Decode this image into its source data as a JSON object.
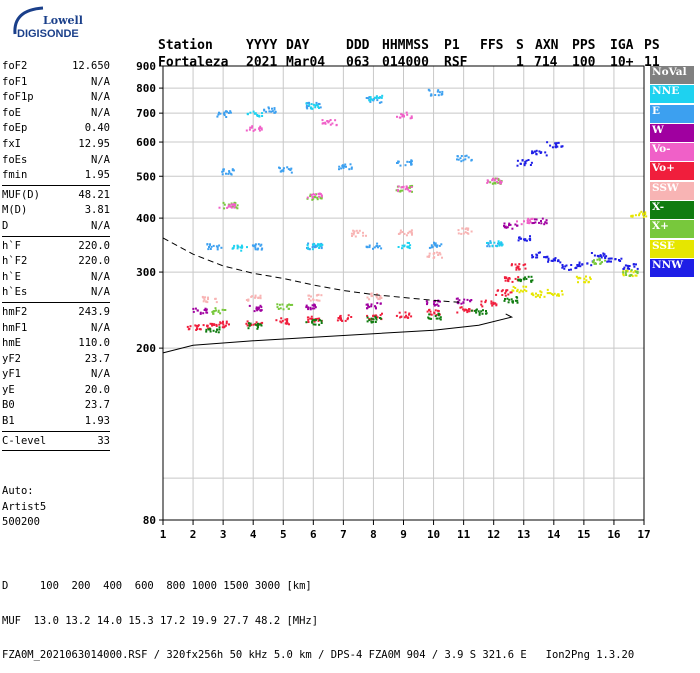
{
  "logo": {
    "line1": "Lowell",
    "line2": "DIGISONDE"
  },
  "header": {
    "labels": [
      "Station",
      "YYYY",
      "DAY",
      "DDD",
      "HHMMSS",
      "P1",
      "FFS",
      "S",
      "AXN",
      "PPS",
      "IGA",
      "PS"
    ],
    "values": [
      "Fortaleza",
      "2021",
      "Mar04",
      "063",
      "014000",
      "RSF",
      "1",
      "714",
      "100",
      "10+",
      "11"
    ]
  },
  "params": [
    {
      "group": [
        {
          "name": "foF2",
          "value": "12.650"
        },
        {
          "name": "foF1",
          "value": "N/A"
        },
        {
          "name": "foF1p",
          "value": "N/A"
        },
        {
          "name": "foE",
          "value": "N/A"
        },
        {
          "name": "foEp",
          "value": "0.40"
        },
        {
          "name": "fxI",
          "value": "12.95"
        },
        {
          "name": "foEs",
          "value": "N/A"
        },
        {
          "name": "fmin",
          "value": "1.95"
        }
      ]
    },
    {
      "group": [
        {
          "name": "MUF(D)",
          "value": "48.21"
        },
        {
          "name": "M(D)",
          "value": "3.81"
        },
        {
          "name": "D",
          "value": "N/A"
        }
      ]
    },
    {
      "group": [
        {
          "name": "h`F",
          "value": "220.0"
        },
        {
          "name": "h`F2",
          "value": "220.0"
        },
        {
          "name": "h`E",
          "value": "N/A"
        },
        {
          "name": "h`Es",
          "value": "N/A"
        }
      ]
    },
    {
      "group": [
        {
          "name": "hmF2",
          "value": "243.9"
        },
        {
          "name": "hmF1",
          "value": "N/A"
        },
        {
          "name": "hmE",
          "value": "110.0"
        },
        {
          "name": "yF2",
          "value": "23.7"
        },
        {
          "name": "yF1",
          "value": "N/A"
        },
        {
          "name": "yE",
          "value": "20.0"
        },
        {
          "name": "B0",
          "value": "23.7"
        },
        {
          "name": "B1",
          "value": "1.93"
        }
      ]
    },
    {
      "group": [
        {
          "name": "C-level",
          "value": "33"
        }
      ]
    }
  ],
  "meta": {
    "line1": "Auto:",
    "line2": "Artist5",
    "line3": "500200"
  },
  "legend": [
    {
      "label": "NoVal",
      "color": "#808080"
    },
    {
      "label": "NNE",
      "color": "#1ed2f0"
    },
    {
      "label": "E",
      "color": "#3ca0f0"
    },
    {
      "label": "W",
      "color": "#a000a0"
    },
    {
      "label": "Vo-",
      "color": "#f060c8"
    },
    {
      "label": "Vo+",
      "color": "#f01e3c"
    },
    {
      "label": "SSW",
      "color": "#f8b4b4"
    },
    {
      "label": "X-",
      "color": "#107c10"
    },
    {
      "label": "X+",
      "color": "#78c83c"
    },
    {
      "label": "SSE",
      "color": "#e6e600"
    },
    {
      "label": "NNW",
      "color": "#1e1ee6"
    }
  ],
  "footer": {
    "line1": "D     100  200  400  600  800 1000 1500 3000 [km]",
    "line2": "MUF  13.0 13.2 14.0 15.3 17.2 19.9 27.7 48.2 [MHz]",
    "line3": "FZA0M_2021063014000.RSF / 320fx256h 50 kHz 5.0 km / DPS-4 FZA0M 904 / 3.9 S 321.6 E   Ion2Png 1.3.20"
  },
  "chart_data": {
    "type": "scatter",
    "xlim": [
      1,
      17
    ],
    "ylim": [
      80,
      900
    ],
    "xticks": [
      "1",
      "2",
      "3",
      "4",
      "5",
      "6",
      "7",
      "8",
      "9",
      "10",
      "11",
      "12",
      "13",
      "14",
      "15",
      "16",
      "17"
    ],
    "yticks": [
      "80",
      "200",
      "300",
      "400",
      "500",
      "600",
      "700",
      "800",
      "900"
    ],
    "grid": true,
    "y_scale": "log",
    "series": [
      {
        "name": "Vo+",
        "points": [
          [
            2.0,
            225
          ],
          [
            2.5,
            226
          ],
          [
            3.0,
            228
          ],
          [
            4.0,
            230
          ],
          [
            5.0,
            232
          ],
          [
            6.0,
            234
          ],
          [
            7.0,
            236
          ],
          [
            8.0,
            238
          ],
          [
            9.0,
            240
          ],
          [
            10.0,
            243
          ],
          [
            11.0,
            247
          ],
          [
            11.8,
            255
          ],
          [
            12.3,
            270
          ],
          [
            12.6,
            290
          ],
          [
            12.8,
            310
          ]
        ]
      },
      {
        "name": "X-",
        "points": [
          [
            2.6,
            222
          ],
          [
            4.0,
            226
          ],
          [
            6.0,
            230
          ],
          [
            8.0,
            234
          ],
          [
            10.0,
            238
          ],
          [
            11.5,
            244
          ],
          [
            12.5,
            260
          ],
          [
            13.0,
            290
          ]
        ]
      },
      {
        "name": "W",
        "points": [
          [
            2.2,
            245
          ],
          [
            4.0,
            248
          ],
          [
            6.0,
            250
          ],
          [
            8.0,
            252
          ],
          [
            10.0,
            255
          ],
          [
            11.0,
            258
          ],
          [
            12.5,
            385
          ],
          [
            13.5,
            395
          ]
        ]
      },
      {
        "name": "E",
        "points": [
          [
            2.7,
            345
          ],
          [
            4.0,
            345
          ],
          [
            6.0,
            346
          ],
          [
            8.0,
            346
          ],
          [
            10.0,
            348
          ],
          [
            12.0,
            350
          ],
          [
            3.2,
            515
          ],
          [
            5.0,
            520
          ],
          [
            7.0,
            528
          ],
          [
            9.0,
            540
          ],
          [
            11.0,
            552
          ],
          [
            3.0,
            700
          ],
          [
            4.5,
            715
          ],
          [
            6.0,
            732
          ],
          [
            8.0,
            755
          ],
          [
            10.0,
            785
          ]
        ]
      },
      {
        "name": "NNE",
        "points": [
          [
            3.5,
            343
          ],
          [
            6.0,
            345
          ],
          [
            9.0,
            347
          ],
          [
            12.0,
            350
          ],
          [
            4.0,
            700
          ],
          [
            6.0,
            730
          ],
          [
            8.0,
            760
          ]
        ]
      },
      {
        "name": "SSW",
        "points": [
          [
            2.5,
            260
          ],
          [
            4.0,
            262
          ],
          [
            6.0,
            263
          ],
          [
            8.0,
            265
          ],
          [
            10.0,
            330
          ],
          [
            7.5,
            370
          ],
          [
            9.0,
            372
          ],
          [
            11.0,
            375
          ]
        ]
      },
      {
        "name": "NNW",
        "points": [
          [
            13.0,
            540
          ],
          [
            13.5,
            570
          ],
          [
            14.0,
            595
          ],
          [
            13.0,
            360
          ],
          [
            13.5,
            330
          ],
          [
            14.0,
            320
          ],
          [
            14.5,
            310
          ],
          [
            15.0,
            315
          ],
          [
            15.5,
            330
          ],
          [
            16.0,
            320
          ],
          [
            16.5,
            310
          ]
        ]
      },
      {
        "name": "SSE",
        "points": [
          [
            12.8,
            275
          ],
          [
            13.5,
            268
          ],
          [
            14.0,
            270
          ],
          [
            15.0,
            290
          ],
          [
            16.5,
            300
          ],
          [
            16.8,
            410
          ]
        ]
      },
      {
        "name": "X+",
        "points": [
          [
            2.8,
            245
          ],
          [
            5.0,
            250
          ],
          [
            3.2,
            430
          ],
          [
            6.0,
            450
          ],
          [
            9.0,
            470
          ],
          [
            12.0,
            490
          ],
          [
            15.5,
            320
          ],
          [
            16.5,
            300
          ]
        ]
      },
      {
        "name": "Vo-",
        "points": [
          [
            3.1,
            430
          ],
          [
            6.0,
            452
          ],
          [
            9.0,
            470
          ],
          [
            12.0,
            490
          ],
          [
            4.0,
            650
          ],
          [
            6.5,
            670
          ],
          [
            9.0,
            695
          ],
          [
            13.0,
            395
          ]
        ]
      }
    ],
    "profile_solid": [
      [
        1.0,
        195
      ],
      [
        2.0,
        203
      ],
      [
        4.0,
        208
      ],
      [
        6.0,
        212
      ],
      [
        8.0,
        216
      ],
      [
        10.0,
        220
      ],
      [
        11.5,
        226
      ],
      [
        12.6,
        236
      ],
      [
        12.4,
        240
      ]
    ],
    "profile_dashed": [
      [
        1.0,
        360
      ],
      [
        2.0,
        330
      ],
      [
        3.0,
        310
      ],
      [
        4.0,
        298
      ],
      [
        5.0,
        290
      ],
      [
        6.0,
        280
      ],
      [
        7.0,
        272
      ],
      [
        8.0,
        266
      ],
      [
        9.0,
        262
      ],
      [
        10.0,
        258
      ],
      [
        11.0,
        255
      ]
    ]
  }
}
